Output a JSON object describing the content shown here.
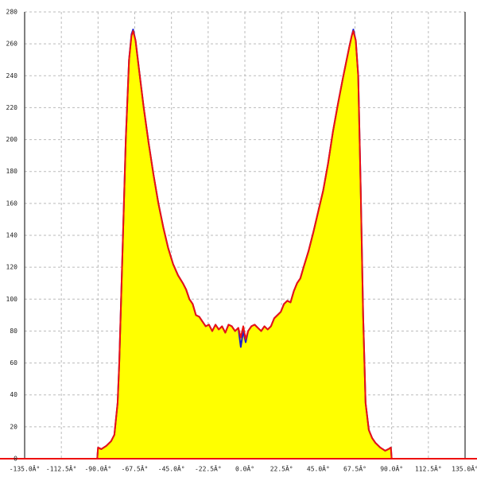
{
  "chart_data": {
    "type": "line",
    "grid": true,
    "fill": "#ffff00",
    "xlim": [
      -135,
      135
    ],
    "ylim": [
      0,
      280
    ],
    "xticks": [
      {
        "value": -135,
        "label": "-135.0Â°"
      },
      {
        "value": -112.5,
        "label": "-112.5Â°"
      },
      {
        "value": -90,
        "label": "-90.0Â°"
      },
      {
        "value": -67.5,
        "label": "-67.5Â°"
      },
      {
        "value": -45,
        "label": "-45.0Â°"
      },
      {
        "value": -22.5,
        "label": "-22.5Â°"
      },
      {
        "value": 0,
        "label": "0.0Â°"
      },
      {
        "value": 22.5,
        "label": "22.5Â°"
      },
      {
        "value": 45,
        "label": "45.0Â°"
      },
      {
        "value": 67.5,
        "label": "67.5Â°"
      },
      {
        "value": 90,
        "label": "90.0Â°"
      },
      {
        "value": 112.5,
        "label": "112.5Â°"
      },
      {
        "value": 135,
        "label": "135.0Â°"
      }
    ],
    "yticks": [
      0,
      20,
      40,
      60,
      80,
      100,
      120,
      140,
      160,
      180,
      200,
      220,
      240,
      260,
      280
    ],
    "x": [
      -135,
      -90.5,
      -90,
      -88,
      -85,
      -82,
      -80,
      -78,
      -77,
      -75,
      -73,
      -71,
      -69.5,
      -68.5,
      -67,
      -65,
      -62,
      -59,
      -56,
      -53,
      -50,
      -47,
      -44,
      -41,
      -38,
      -36,
      -34,
      -32,
      -30,
      -28,
      -26,
      -24,
      -22,
      -20,
      -18,
      -16,
      -14,
      -12,
      -10,
      -8,
      -6,
      -4,
      -2.5,
      -1,
      0.5,
      2,
      4,
      6,
      8,
      10,
      12,
      14,
      16,
      18,
      20,
      22,
      24,
      26,
      28,
      30,
      32,
      34,
      36,
      39,
      42,
      45,
      48,
      51,
      54,
      57,
      60,
      62,
      64,
      65.5,
      66.5,
      68,
      69.5,
      71,
      72.5,
      74,
      76,
      78,
      80,
      83,
      86,
      88,
      89.5,
      90,
      90.5,
      135
    ],
    "series": [
      {
        "color": "#1a1acc",
        "values": [
          0,
          0,
          7,
          6,
          8,
          11,
          15,
          35,
          60,
          130,
          200,
          250,
          266,
          269,
          262,
          245,
          220,
          198,
          178,
          160,
          145,
          132,
          122,
          115,
          110,
          106,
          100,
          97,
          90,
          89,
          86,
          83,
          84,
          80,
          84,
          81,
          83,
          79,
          84,
          83,
          80,
          82,
          70,
          80,
          73,
          80,
          83,
          84,
          82,
          80,
          83,
          81,
          83,
          88,
          90,
          92,
          97,
          99,
          98,
          105,
          110,
          113,
          120,
          130,
          142,
          155,
          168,
          185,
          205,
          222,
          238,
          248,
          258,
          265,
          269,
          262,
          240,
          170,
          90,
          35,
          18,
          13,
          10,
          7,
          5,
          6,
          7,
          0,
          0,
          0
        ]
      },
      {
        "color": "#ee1111",
        "values": [
          0,
          0,
          7,
          6,
          8,
          11,
          15,
          35,
          60,
          130,
          200,
          250,
          265,
          268,
          262,
          245,
          220,
          198,
          178,
          160,
          145,
          132,
          122,
          115,
          110,
          106,
          100,
          97,
          90,
          89,
          86,
          83,
          84,
          80,
          84,
          81,
          83,
          79,
          84,
          83,
          80,
          82,
          76,
          83,
          75,
          80,
          83,
          84,
          82,
          80,
          83,
          81,
          83,
          88,
          90,
          92,
          97,
          99,
          98,
          105,
          110,
          113,
          120,
          130,
          142,
          155,
          168,
          185,
          205,
          222,
          238,
          248,
          258,
          265,
          268,
          262,
          240,
          170,
          90,
          35,
          18,
          13,
          10,
          7,
          5,
          6,
          7,
          0,
          0,
          0
        ]
      }
    ]
  }
}
